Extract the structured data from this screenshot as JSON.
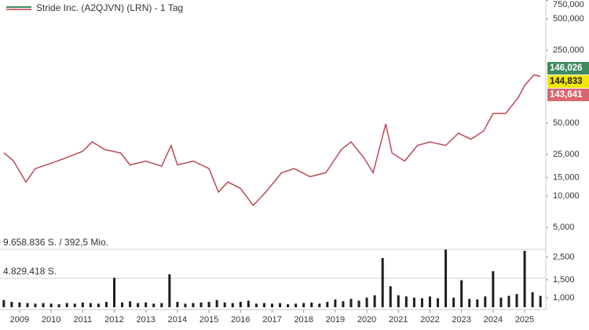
{
  "chart_data": {
    "type": "stock",
    "title": "Stride Inc. (A2QJVN) (LRN) - 1 Tag",
    "xlim": [
      2008.38,
      2025.67
    ],
    "xticks": [
      2009,
      2010,
      2011,
      2012,
      2013,
      2014,
      2015,
      2016,
      2017,
      2018,
      2019,
      2020,
      2021,
      2022,
      2023,
      2024,
      2025
    ],
    "ylim": [
      4210,
      757000
    ],
    "log_y": true,
    "yticks": [
      {
        "value": 750000,
        "label": "750,000"
      },
      {
        "value": 500000,
        "label": "500,000"
      },
      {
        "value": 250000,
        "label": "250,000"
      },
      {
        "value": 50000,
        "label": "50,000"
      },
      {
        "value": 25000,
        "label": "25,000"
      },
      {
        "value": 15000,
        "label": "15,000"
      },
      {
        "value": 10000,
        "label": "10,000"
      },
      {
        "value": 5000,
        "label": "5,000"
      }
    ],
    "price": {
      "color": "#b84a55",
      "x": [
        2008.5,
        2008.8,
        2009.2,
        2009.5,
        2010.0,
        2010.5,
        2011.0,
        2011.3,
        2011.7,
        2012.2,
        2012.5,
        2013.0,
        2013.5,
        2013.8,
        2014.0,
        2014.5,
        2015.0,
        2015.3,
        2015.6,
        2016.0,
        2016.4,
        2016.8,
        2017.3,
        2017.7,
        2018.2,
        2018.7,
        2019.2,
        2019.5,
        2019.9,
        2020.2,
        2020.6,
        2020.8,
        2021.2,
        2021.6,
        2022.0,
        2022.5,
        2022.9,
        2023.3,
        2023.7,
        2024.0,
        2024.4,
        2024.8,
        2025.0,
        2025.3,
        2025.5
      ],
      "values": [
        26000,
        21800,
        13600,
        18300,
        20600,
        23400,
        26800,
        33000,
        27800,
        25800,
        19800,
        21600,
        19300,
        30500,
        19800,
        21600,
        18300,
        10900,
        13600,
        11800,
        8100,
        10900,
        16700,
        18300,
        15300,
        16700,
        28000,
        33000,
        23400,
        16700,
        49000,
        25800,
        21600,
        30500,
        33000,
        30500,
        40000,
        35000,
        42000,
        62000,
        62000,
        88000,
        115000,
        145000,
        140000
      ]
    },
    "price_markers": [
      {
        "value": 146026,
        "label": "146,026",
        "color": "#3d8b5e"
      },
      {
        "value": 144833,
        "label": "144,833",
        "color": "#f2e600"
      },
      {
        "value": 143641,
        "label": "143,641",
        "color": "#d9666e"
      }
    ],
    "volume": {
      "color": "#1e1e1e",
      "x": [
        2008.5,
        2008.75,
        2009.0,
        2009.25,
        2009.5,
        2009.75,
        2010.0,
        2010.25,
        2010.5,
        2010.75,
        2011.0,
        2011.25,
        2011.5,
        2011.75,
        2012.0,
        2012.25,
        2012.5,
        2012.75,
        2013.0,
        2013.25,
        2013.5,
        2013.75,
        2014.0,
        2014.25,
        2014.5,
        2014.75,
        2015.0,
        2015.25,
        2015.5,
        2015.75,
        2016.0,
        2016.25,
        2016.5,
        2016.75,
        2017.0,
        2017.25,
        2017.5,
        2017.75,
        2018.0,
        2018.25,
        2018.5,
        2018.75,
        2019.0,
        2019.25,
        2019.5,
        2019.75,
        2020.0,
        2020.25,
        2020.5,
        2020.75,
        2021.0,
        2021.25,
        2021.5,
        2021.75,
        2022.0,
        2022.25,
        2022.5,
        2022.75,
        2023.0,
        2023.25,
        2023.5,
        2023.75,
        2024.0,
        2024.25,
        2024.5,
        2024.75,
        2025.0,
        2025.25,
        2025.5
      ],
      "values": [
        1200000,
        900000,
        800000,
        700000,
        600000,
        700000,
        600000,
        500000,
        700000,
        600000,
        800000,
        700000,
        600000,
        900000,
        4900000,
        800000,
        1000000,
        700000,
        800000,
        600000,
        700000,
        5500000,
        900000,
        600000,
        700000,
        800000,
        900000,
        1200000,
        800000,
        700000,
        900000,
        1100000,
        600000,
        700000,
        600000,
        700000,
        500000,
        600000,
        700000,
        800000,
        600000,
        900000,
        1300000,
        1000000,
        1400000,
        1100000,
        1600000,
        2000000,
        8200000,
        3500000,
        2000000,
        1800000,
        1600000,
        1500000,
        1800000,
        1500000,
        9600000,
        1600000,
        4500000,
        1400000,
        1300000,
        1800000,
        6000000,
        1600000,
        1900000,
        2200000,
        9400000,
        2500000,
        1900000
      ],
      "ylim": [
        0,
        9658836
      ],
      "yticks": [
        {
          "value": 9658836,
          "label": "9.658.836 S. / 392,5 Mio."
        },
        {
          "value": 4829418,
          "label": "4.829.418 S."
        }
      ]
    },
    "y2lim": [
      810,
      2975
    ],
    "log_y2": true,
    "y2ticks": [
      {
        "value": 2500,
        "label": "2,500"
      },
      {
        "value": 1500,
        "label": "1,500"
      },
      {
        "value": 1000,
        "label": "1,000"
      }
    ]
  }
}
